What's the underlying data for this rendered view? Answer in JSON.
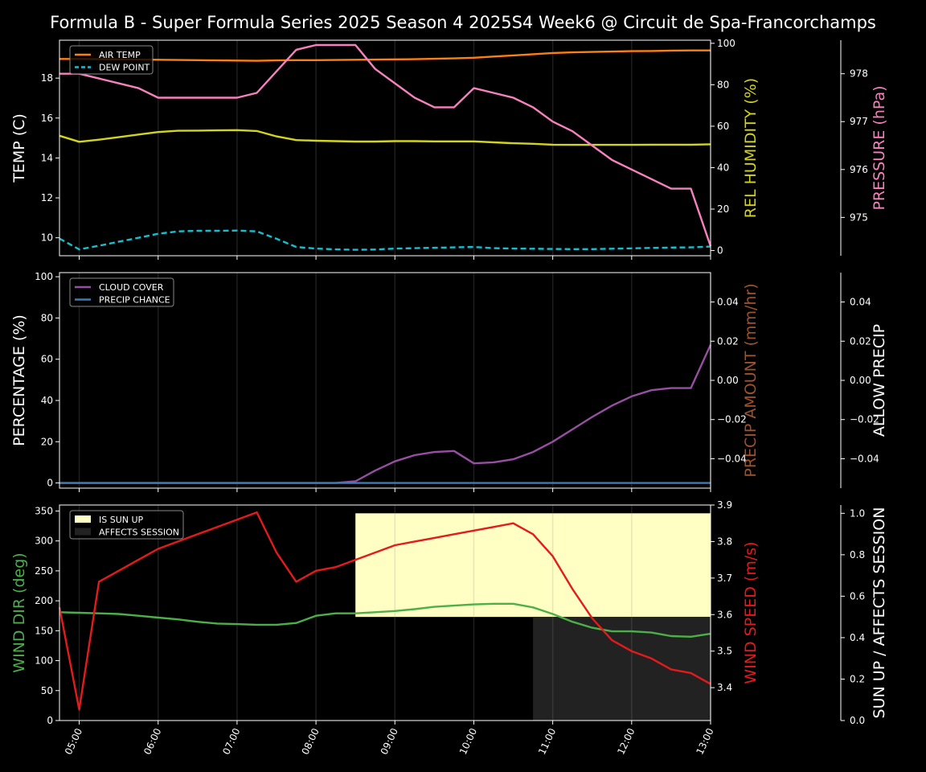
{
  "title": "Formula B - Super Formula Series 2025 Season 4 2025S4 Week6 @ Circuit de Spa-Francorchamps",
  "colors": {
    "air_temp": "#ff7f0e",
    "dew_point": "#17becf",
    "humidity": "#d4d41c",
    "pressure": "#f781bf",
    "cloud_cover": "#984ea3",
    "precip_chance": "#377eb8",
    "precip_amount_label": "#a0522d",
    "wind_dir": "#4daf4a",
    "wind_speed": "#e41a1c",
    "sun_up": "#ffffc4",
    "affects_session": "#222222"
  },
  "chart_data": [
    {
      "type": "line",
      "panel": "temperature",
      "x_ticks": [
        "05:00",
        "06:00",
        "07:00",
        "08:00",
        "09:00",
        "10:00",
        "11:00",
        "12:00",
        "13:00"
      ],
      "x_range": [
        4.75,
        13.0
      ],
      "x": [
        4.75,
        5.0,
        5.25,
        5.5,
        5.75,
        6.0,
        6.25,
        6.5,
        6.75,
        7.0,
        7.25,
        7.5,
        7.75,
        8.0,
        8.25,
        8.5,
        8.75,
        9.0,
        9.25,
        9.5,
        9.75,
        10.0,
        10.25,
        10.5,
        10.75,
        11.0,
        11.25,
        11.5,
        11.75,
        12.0,
        12.25,
        12.5,
        12.75,
        13.0
      ],
      "legend": [
        "AIR TEMP",
        "DEW POINT"
      ],
      "legend_position": "upper-left",
      "left_axis": {
        "label": "TEMP (C)",
        "range": [
          9.1,
          19.9
        ],
        "ticks": [
          "10",
          "12",
          "14",
          "16",
          "18"
        ]
      },
      "right_axis": {
        "label": "REL HUMIDITY (%)",
        "range": [
          -2.5,
          101.5
        ],
        "ticks": [
          "0",
          "20",
          "40",
          "60",
          "80",
          "100"
        ]
      },
      "far_right_axis": {
        "label": "PRESSURE (hPa)",
        "range": [
          974.2,
          978.7
        ],
        "ticks": [
          "975",
          "976",
          "977",
          "978"
        ]
      },
      "series": [
        {
          "name": "AIR TEMP",
          "axis": "left",
          "style": "solid",
          "color_key": "air_temp",
          "values": [
            18.96,
            18.96,
            18.95,
            18.94,
            18.93,
            18.92,
            18.91,
            18.9,
            18.89,
            18.88,
            18.87,
            18.89,
            18.9,
            18.9,
            18.91,
            18.92,
            18.93,
            18.94,
            18.95,
            18.97,
            18.99,
            19.02,
            19.08,
            19.14,
            19.2,
            19.26,
            19.29,
            19.31,
            19.33,
            19.35,
            19.36,
            19.38,
            19.39,
            19.39
          ]
        },
        {
          "name": "DEW POINT",
          "axis": "left",
          "style": "dashed",
          "color_key": "dew_point",
          "values": [
            9.96,
            9.42,
            9.6,
            9.8,
            10.0,
            10.2,
            10.32,
            10.35,
            10.35,
            10.36,
            10.32,
            9.95,
            9.54,
            9.46,
            9.42,
            9.4,
            9.41,
            9.46,
            9.48,
            9.5,
            9.52,
            9.54,
            9.48,
            9.46,
            9.45,
            9.44,
            9.43,
            9.43,
            9.45,
            9.47,
            9.49,
            9.51,
            9.52,
            9.56
          ]
        },
        {
          "name": "REL HUMIDITY",
          "axis": "right",
          "style": "solid",
          "color_key": "humidity",
          "values": [
            55.4,
            52.5,
            53.5,
            54.7,
            56.0,
            57.2,
            57.8,
            57.9,
            58.0,
            58.1,
            57.7,
            55.1,
            53.3,
            53.0,
            52.8,
            52.6,
            52.6,
            52.8,
            52.8,
            52.7,
            52.7,
            52.7,
            52.2,
            51.8,
            51.5,
            51.1,
            51.0,
            51.0,
            51.0,
            51.0,
            51.1,
            51.1,
            51.1,
            51.3
          ]
        },
        {
          "name": "PRESSURE",
          "axis": "far_right",
          "style": "solid",
          "color_key": "pressure",
          "values": [
            978.0,
            978.0,
            977.9,
            977.8,
            977.7,
            977.5,
            977.5,
            977.5,
            977.5,
            977.5,
            977.6,
            978.05,
            978.5,
            978.6,
            978.6,
            978.6,
            978.1,
            977.8,
            977.5,
            977.3,
            977.3,
            977.7,
            977.6,
            977.5,
            977.3,
            977.0,
            976.8,
            976.5,
            976.2,
            976.0,
            975.8,
            975.6,
            975.6,
            974.4
          ]
        }
      ]
    },
    {
      "type": "line",
      "panel": "precipitation",
      "x_ticks": [
        "05:00",
        "06:00",
        "07:00",
        "08:00",
        "09:00",
        "10:00",
        "11:00",
        "12:00",
        "13:00"
      ],
      "x_range": [
        4.75,
        13.0
      ],
      "x": [
        4.75,
        5.0,
        5.25,
        5.5,
        5.75,
        6.0,
        6.25,
        6.5,
        6.75,
        7.0,
        7.25,
        7.5,
        7.75,
        8.0,
        8.25,
        8.5,
        8.75,
        9.0,
        9.25,
        9.5,
        9.75,
        10.0,
        10.25,
        10.5,
        10.75,
        11.0,
        11.25,
        11.5,
        11.75,
        12.0,
        12.25,
        12.5,
        12.75,
        13.0
      ],
      "legend": [
        "CLOUD COVER",
        "PRECIP CHANCE"
      ],
      "legend_position": "upper-left",
      "left_axis": {
        "label": "PERCENTAGE (%)",
        "range": [
          -2.5,
          102
        ],
        "ticks": [
          "0",
          "20",
          "40",
          "60",
          "80",
          "100"
        ]
      },
      "right_axis": {
        "label": "PRECIP AMOUNT (mm/hr)",
        "range": [
          -0.055,
          0.055
        ],
        "ticks": [
          "−0.04",
          "−0.02",
          "0.00",
          "0.02",
          "0.04"
        ]
      },
      "far_right_axis": {
        "label": "ALLOW PRECIP",
        "range": [
          -0.055,
          0.055
        ],
        "ticks": [
          "−0.04",
          "−0.02",
          "0.00",
          "0.02",
          "0.04"
        ]
      },
      "series": [
        {
          "name": "CLOUD COVER",
          "axis": "left",
          "style": "solid",
          "color_key": "cloud_cover",
          "values": [
            0,
            0,
            0,
            0,
            0,
            0,
            0,
            0,
            0,
            0,
            0,
            0,
            0,
            0,
            0,
            0.8,
            6,
            10.5,
            13.5,
            15,
            15.5,
            9.5,
            10,
            11.5,
            15,
            20,
            26,
            32,
            37.5,
            42,
            45,
            46,
            46,
            67
          ]
        },
        {
          "name": "PRECIP CHANCE",
          "axis": "left",
          "style": "solid",
          "color_key": "precip_chance",
          "values": [
            0,
            0,
            0,
            0,
            0,
            0,
            0,
            0,
            0,
            0,
            0,
            0,
            0,
            0,
            0,
            0,
            0,
            0,
            0,
            0,
            0,
            0,
            0,
            0,
            0,
            0,
            0,
            0,
            0,
            0,
            0,
            0,
            0,
            0
          ]
        }
      ]
    },
    {
      "type": "line",
      "panel": "wind",
      "x_ticks": [
        "05:00",
        "06:00",
        "07:00",
        "08:00",
        "09:00",
        "10:00",
        "11:00",
        "12:00",
        "13:00"
      ],
      "x_range": [
        4.75,
        13.0
      ],
      "x": [
        4.75,
        5.0,
        5.25,
        5.5,
        5.75,
        6.0,
        6.25,
        6.5,
        6.75,
        7.0,
        7.25,
        7.5,
        7.75,
        8.0,
        8.25,
        8.5,
        8.75,
        9.0,
        9.25,
        9.5,
        9.75,
        10.0,
        10.25,
        10.5,
        10.75,
        11.0,
        11.25,
        11.5,
        11.75,
        12.0,
        12.25,
        12.5,
        12.75,
        13.0
      ],
      "legend": [
        "IS SUN UP",
        "AFFECTS SESSION"
      ],
      "legend_position": "upper-left",
      "left_axis": {
        "label": "WIND DIR (deg)",
        "range": [
          0,
          360
        ],
        "ticks": [
          "0",
          "50",
          "100",
          "150",
          "200",
          "250",
          "300",
          "350"
        ]
      },
      "right_axis": {
        "label": "WIND SPEED (m/s)",
        "range": [
          3.31,
          3.9
        ],
        "ticks": [
          "3.4",
          "3.5",
          "3.6",
          "3.7",
          "3.8",
          "3.9"
        ]
      },
      "far_right_axis": {
        "label": "SUN UP / AFFECTS SESSION",
        "range": [
          0,
          1.04
        ],
        "ticks": [
          "0.0",
          "0.2",
          "0.4",
          "0.6",
          "0.8",
          "1.0"
        ]
      },
      "bands": [
        {
          "name": "IS SUN UP",
          "color_key": "sun_up",
          "x_start": 8.5,
          "x_end": 13.0,
          "y_low": 0.5,
          "y_high": 1.0
        },
        {
          "name": "AFFECTS SESSION",
          "color_key": "affects_session",
          "x_start": 10.75,
          "x_end": 13.0,
          "y_low": 0.0,
          "y_high": 0.5
        }
      ],
      "series": [
        {
          "name": "WIND DIR",
          "axis": "left",
          "style": "solid",
          "color_key": "wind_dir",
          "values": [
            181,
            180,
            179,
            178,
            175,
            172,
            169,
            165,
            162,
            161,
            160,
            160,
            163,
            175,
            179,
            179,
            181,
            183,
            186,
            190,
            192,
            194,
            195,
            195,
            189,
            178,
            165,
            155,
            149,
            149,
            147,
            141,
            140,
            145
          ]
        },
        {
          "name": "WIND SPEED",
          "axis": "right",
          "style": "solid",
          "color_key": "wind_speed",
          "values": [
            3.62,
            3.34,
            3.69,
            3.72,
            3.75,
            3.78,
            3.8,
            3.82,
            3.84,
            3.86,
            3.88,
            3.77,
            3.69,
            3.72,
            3.73,
            3.75,
            3.77,
            3.79,
            3.8,
            3.81,
            3.82,
            3.83,
            3.84,
            3.85,
            3.82,
            3.76,
            3.67,
            3.59,
            3.53,
            3.5,
            3.48,
            3.45,
            3.44,
            3.41
          ]
        }
      ]
    }
  ]
}
